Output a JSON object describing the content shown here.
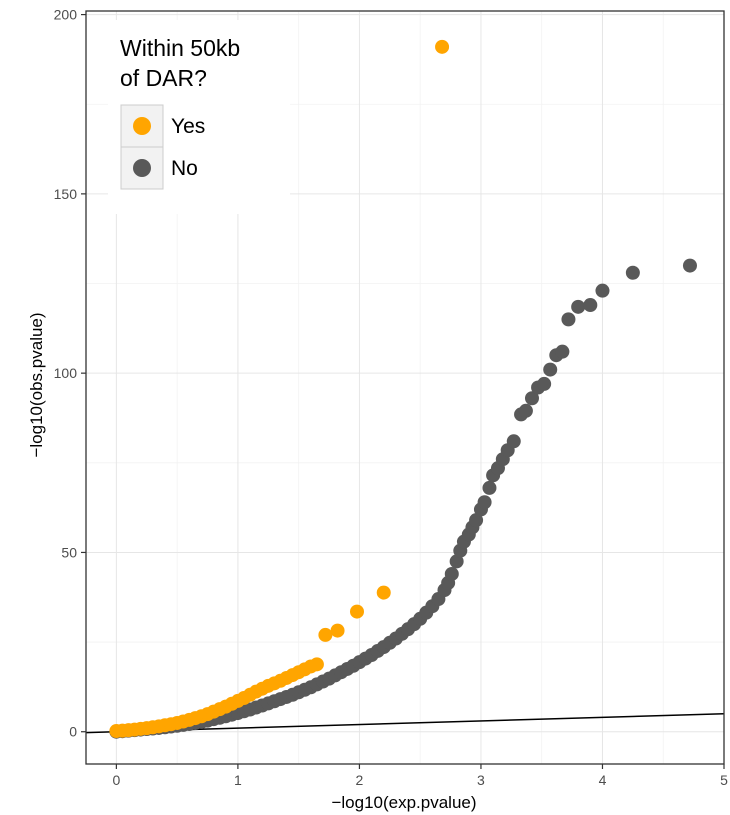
{
  "chart_data": {
    "type": "scatter",
    "title": "",
    "xlabel": "−log10(exp.pvalue)",
    "ylabel": "−log10(obs.pvalue)",
    "xlim": [
      -0.25,
      5
    ],
    "ylim": [
      -9,
      201
    ],
    "x_ticks": [
      0,
      1,
      2,
      3,
      4,
      5
    ],
    "y_ticks": [
      0,
      50,
      100,
      150,
      200
    ],
    "grid": true,
    "legend": {
      "title_lines": [
        "Within 50kb",
        "of DAR?"
      ],
      "position": "top-left"
    },
    "reference_line": {
      "x": [
        -0.25,
        5
      ],
      "y": [
        -0.25,
        5
      ]
    },
    "series": [
      {
        "name": "Yes",
        "color": "#FFA500",
        "points": [
          [
            0,
            0.2
          ],
          [
            0.05,
            0.3
          ],
          [
            0.1,
            0.45
          ],
          [
            0.15,
            0.6
          ],
          [
            0.2,
            0.8
          ],
          [
            0.25,
            1.0
          ],
          [
            0.3,
            1.25
          ],
          [
            0.35,
            1.5
          ],
          [
            0.4,
            1.8
          ],
          [
            0.45,
            2.1
          ],
          [
            0.5,
            2.45
          ],
          [
            0.55,
            2.85
          ],
          [
            0.6,
            3.3
          ],
          [
            0.65,
            3.8
          ],
          [
            0.7,
            4.3
          ],
          [
            0.75,
            4.9
          ],
          [
            0.8,
            5.6
          ],
          [
            0.85,
            6.3
          ],
          [
            0.9,
            7.0
          ],
          [
            0.95,
            7.8
          ],
          [
            1.0,
            8.6
          ],
          [
            1.05,
            9.4
          ],
          [
            1.1,
            10.3
          ],
          [
            1.15,
            11.2
          ],
          [
            1.2,
            12.0
          ],
          [
            1.25,
            12.8
          ],
          [
            1.3,
            13.5
          ],
          [
            1.35,
            14.2
          ],
          [
            1.4,
            15.0
          ],
          [
            1.45,
            15.8
          ],
          [
            1.5,
            16.6
          ],
          [
            1.55,
            17.4
          ],
          [
            1.6,
            18.2
          ],
          [
            1.65,
            18.8
          ],
          [
            1.72,
            27.0
          ],
          [
            1.82,
            28.2
          ],
          [
            1.98,
            33.5
          ],
          [
            2.2,
            38.8
          ],
          [
            2.68,
            191.0
          ]
        ]
      },
      {
        "name": "No",
        "color": "#595959",
        "points": [
          [
            0,
            0
          ],
          [
            0.05,
            0.15
          ],
          [
            0.1,
            0.3
          ],
          [
            0.15,
            0.45
          ],
          [
            0.2,
            0.6
          ],
          [
            0.25,
            0.75
          ],
          [
            0.3,
            0.9
          ],
          [
            0.35,
            1.05
          ],
          [
            0.4,
            1.25
          ],
          [
            0.45,
            1.45
          ],
          [
            0.5,
            1.65
          ],
          [
            0.55,
            1.9
          ],
          [
            0.6,
            2.15
          ],
          [
            0.65,
            2.45
          ],
          [
            0.7,
            2.75
          ],
          [
            0.75,
            3.1
          ],
          [
            0.8,
            3.5
          ],
          [
            0.85,
            3.9
          ],
          [
            0.9,
            4.3
          ],
          [
            0.95,
            4.75
          ],
          [
            1.0,
            5.2
          ],
          [
            1.05,
            5.7
          ],
          [
            1.1,
            6.2
          ],
          [
            1.15,
            6.75
          ],
          [
            1.2,
            7.3
          ],
          [
            1.25,
            7.9
          ],
          [
            1.3,
            8.5
          ],
          [
            1.35,
            9.1
          ],
          [
            1.4,
            9.7
          ],
          [
            1.45,
            10.3
          ],
          [
            1.5,
            11.0
          ],
          [
            1.55,
            11.7
          ],
          [
            1.6,
            12.4
          ],
          [
            1.65,
            13.2
          ],
          [
            1.7,
            14.0
          ],
          [
            1.75,
            14.8
          ],
          [
            1.8,
            15.7
          ],
          [
            1.85,
            16.6
          ],
          [
            1.9,
            17.5
          ],
          [
            1.95,
            18.4
          ],
          [
            2.0,
            19.4
          ],
          [
            2.05,
            20.4
          ],
          [
            2.1,
            21.4
          ],
          [
            2.15,
            22.5
          ],
          [
            2.2,
            23.6
          ],
          [
            2.25,
            24.8
          ],
          [
            2.3,
            26.0
          ],
          [
            2.35,
            27.3
          ],
          [
            2.4,
            28.6
          ],
          [
            2.45,
            30.0
          ],
          [
            2.5,
            31.5
          ],
          [
            2.55,
            33.2
          ],
          [
            2.6,
            35.0
          ],
          [
            2.65,
            37.0
          ],
          [
            2.7,
            39.5
          ],
          [
            2.73,
            41.5
          ],
          [
            2.76,
            44.0
          ],
          [
            2.8,
            47.5
          ],
          [
            2.83,
            50.5
          ],
          [
            2.86,
            53.0
          ],
          [
            2.9,
            55.0
          ],
          [
            2.93,
            57.0
          ],
          [
            2.96,
            59.0
          ],
          [
            3.0,
            62.0
          ],
          [
            3.03,
            64.0
          ],
          [
            3.07,
            68.0
          ],
          [
            3.1,
            71.5
          ],
          [
            3.14,
            73.5
          ],
          [
            3.18,
            76.0
          ],
          [
            3.22,
            78.5
          ],
          [
            3.27,
            81.0
          ],
          [
            3.33,
            88.5
          ],
          [
            3.37,
            89.5
          ],
          [
            3.42,
            93.0
          ],
          [
            3.47,
            96.0
          ],
          [
            3.52,
            97.0
          ],
          [
            3.57,
            101.0
          ],
          [
            3.62,
            105.0
          ],
          [
            3.67,
            106.0
          ],
          [
            3.72,
            115.0
          ],
          [
            3.8,
            118.5
          ],
          [
            3.9,
            119.0
          ],
          [
            4.0,
            123.0
          ],
          [
            4.25,
            128.0
          ],
          [
            4.72,
            130.0
          ]
        ]
      }
    ]
  }
}
